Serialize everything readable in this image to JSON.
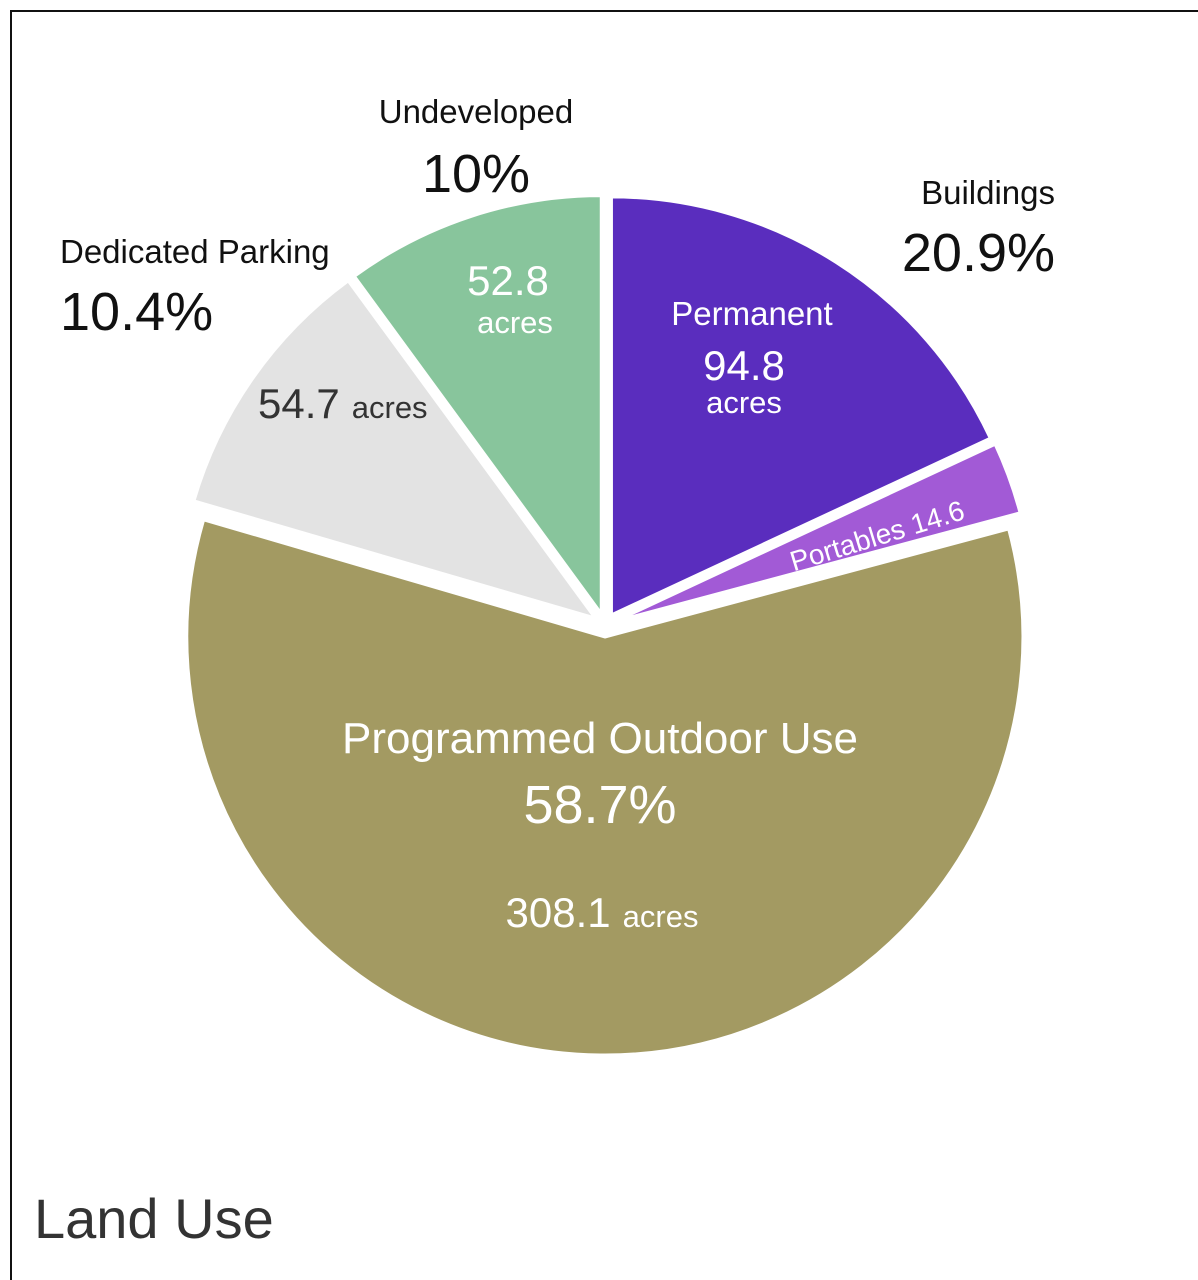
{
  "page_title": "Land Use",
  "chart_data": {
    "type": "pie",
    "title": "Land Use",
    "unit": "acres",
    "slices": [
      {
        "name": "Permanent",
        "value": 94.8,
        "color": "#5a2dbe"
      },
      {
        "name": "Portables",
        "value": 14.6,
        "color": "#a25ad6"
      },
      {
        "name": "Programmed Outdoor Use",
        "value": 308.1,
        "percent": "58.7%",
        "color": "#a39a62"
      },
      {
        "name": "Dedicated Parking",
        "value": 54.7,
        "percent": "10.4%",
        "color": "#e3e3e3"
      },
      {
        "name": "Undeveloped",
        "value": 52.8,
        "percent": "10%",
        "color": "#88c59c"
      }
    ],
    "groups": [
      {
        "name": "Buildings",
        "percent": "20.9%"
      }
    ]
  },
  "labels": {
    "undeveloped": {
      "name": "Undeveloped",
      "percent": "10%",
      "value": "52.8",
      "unit": "acres"
    },
    "buildings": {
      "name": "Buildings",
      "percent": "20.9%"
    },
    "permanent": {
      "name": "Permanent",
      "value": "94.8",
      "unit": "acres"
    },
    "portables": {
      "text": "Portables 14.6"
    },
    "parking": {
      "name": "Dedicated Parking",
      "percent": "10.4%",
      "value": "54.7",
      "unit": "acres"
    },
    "outdoor": {
      "name": "Programmed Outdoor Use",
      "percent": "58.7%",
      "value": "308.1",
      "unit": "acres"
    }
  }
}
